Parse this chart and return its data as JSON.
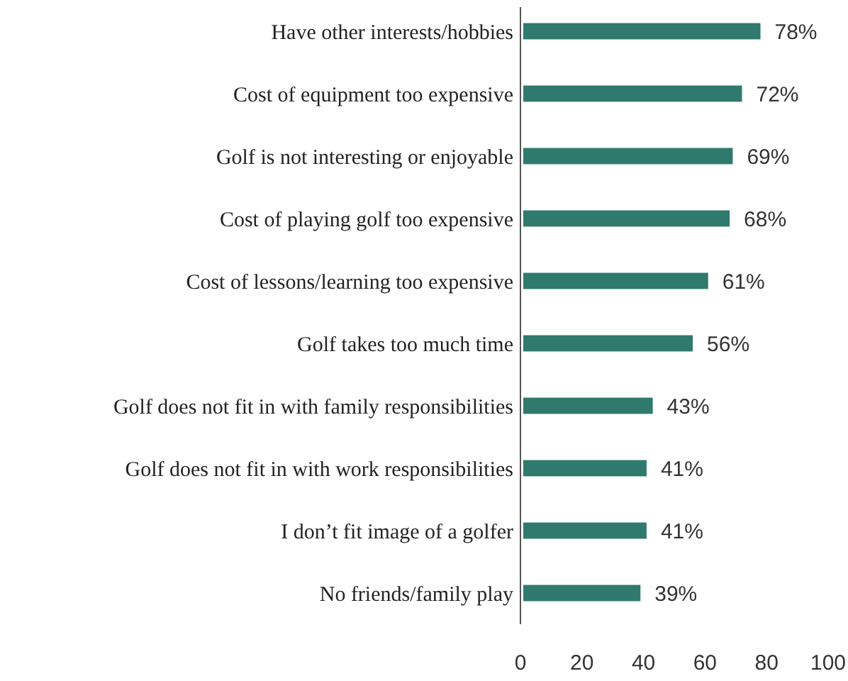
{
  "chart_data": {
    "type": "bar",
    "orientation": "horizontal",
    "categories": [
      "Have other interests/hobbies",
      "Cost of equipment too expensive",
      "Golf is not interesting or enjoyable",
      "Cost of playing golf too expensive",
      "Cost of lessons/learning too expensive",
      "Golf takes too much time",
      "Golf does not fit in with family responsibilities",
      "Golf does not fit in with work responsibilities",
      "I don’t fit image of a golfer",
      "No friends/family play"
    ],
    "values": [
      78,
      72,
      69,
      68,
      61,
      56,
      43,
      41,
      41,
      39
    ],
    "value_labels": [
      "78%",
      "72%",
      "69%",
      "68%",
      "61%",
      "56%",
      "43%",
      "41%",
      "41%",
      "39%"
    ],
    "color": "#2f7a6c",
    "xlim": [
      0,
      100
    ],
    "xticks": [
      0,
      20,
      40,
      60,
      80,
      100
    ],
    "grid": false
  }
}
